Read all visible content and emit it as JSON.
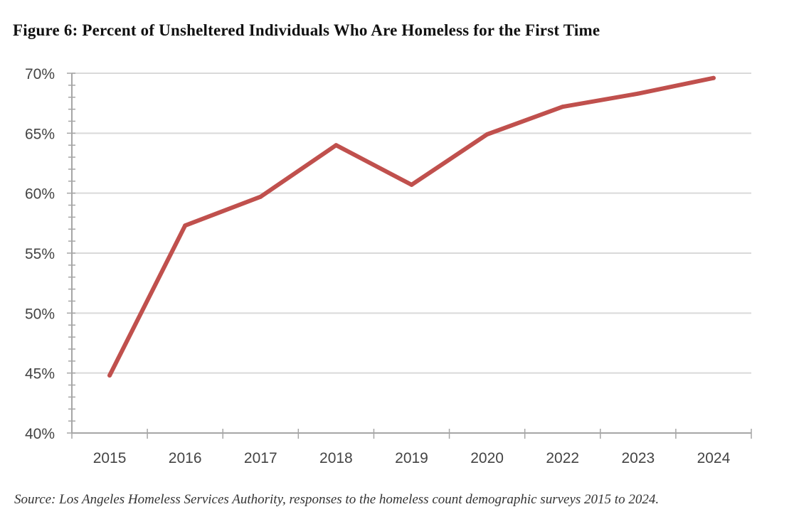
{
  "chart_data": {
    "type": "line",
    "title": "Figure 6: Percent of Unsheltered Individuals Who Are Homeless for the First Time",
    "source": "Source: Los Angeles Homeless Services Authority, responses to the homeless count demographic surveys 2015 to 2024.",
    "categories": [
      "2015",
      "2016",
      "2017",
      "2018",
      "2019",
      "2020",
      "2022",
      "2023",
      "2024"
    ],
    "values": [
      44.8,
      57.3,
      59.7,
      64.0,
      60.7,
      64.9,
      67.2,
      68.3,
      69.6
    ],
    "ylim": [
      40,
      70
    ],
    "yticks": [
      40,
      45,
      50,
      55,
      60,
      65,
      70
    ],
    "ytick_labels": [
      "40%",
      "45%",
      "50%",
      "55%",
      "60%",
      "65%",
      "70%"
    ],
    "xlabel": "",
    "ylabel": "",
    "grid": true,
    "line_color": "#c0504d",
    "grid_color": "#d9d9d9",
    "axis_color": "#a6a6a6"
  }
}
